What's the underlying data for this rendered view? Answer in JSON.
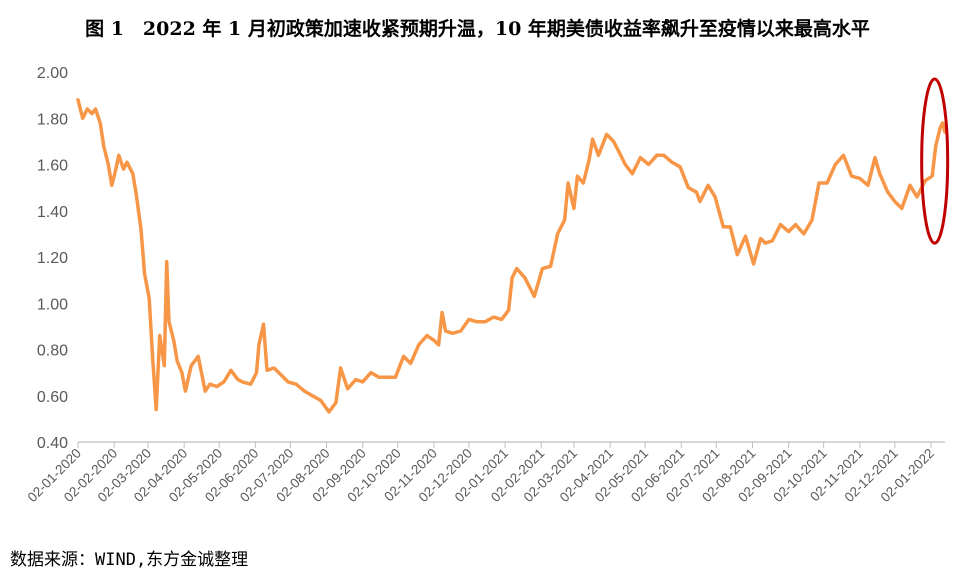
{
  "title": "图 1　2022 年 1 月初政策加速收紧预期升温，10 年期美债收益率飙升至疫情以来最高水平",
  "source": "数据来源：WIND,东方金诚整理",
  "colors": {
    "line": "#F79646",
    "highlight": "#C00000",
    "axis": "#BFBFBF",
    "text": "#595959"
  },
  "chart_data": {
    "type": "line",
    "title": "图 1　2022 年 1 月初政策加速收紧预期升温，10 年期美债收益率飙升至疫情以来最高水平",
    "xlabel": "",
    "ylabel": "",
    "ylim": [
      0.4,
      2.0
    ],
    "yticks": [
      "0.40",
      "0.60",
      "0.80",
      "1.00",
      "1.20",
      "1.40",
      "1.60",
      "1.80",
      "2.00"
    ],
    "xticks": [
      "02-01-2020",
      "02-02-2020",
      "02-03-2020",
      "02-04-2020",
      "02-05-2020",
      "02-06-2020",
      "02-07-2020",
      "02-08-2020",
      "02-09-2020",
      "02-10-2020",
      "02-11-2020",
      "02-12-2020",
      "02-01-2021",
      "02-02-2021",
      "02-03-2021",
      "02-04-2021",
      "02-05-2021",
      "02-06-2021",
      "02-07-2021",
      "02-08-2021",
      "02-09-2021",
      "02-10-2021",
      "02-11-2021",
      "02-12-2021",
      "02-01-2022"
    ],
    "grid": false,
    "legend": "none",
    "series": [
      {
        "x": [
          "2020-01-02",
          "2020-01-06",
          "2020-01-10",
          "2020-01-14",
          "2020-01-17",
          "2020-01-21",
          "2020-01-24",
          "2020-01-28",
          "2020-01-31",
          "2020-02-03",
          "2020-02-06",
          "2020-02-10",
          "2020-02-13",
          "2020-02-18",
          "2020-02-21",
          "2020-02-25",
          "2020-02-28",
          "2020-03-03",
          "2020-03-06",
          "2020-03-09",
          "2020-03-12",
          "2020-03-16",
          "2020-03-18",
          "2020-03-20",
          "2020-03-24",
          "2020-03-27",
          "2020-03-31",
          "2020-04-03",
          "2020-04-08",
          "2020-04-14",
          "2020-04-20",
          "2020-04-24",
          "2020-04-30",
          "2020-05-06",
          "2020-05-12",
          "2020-05-18",
          "2020-05-22",
          "2020-05-29",
          "2020-06-03",
          "2020-06-05",
          "2020-06-09",
          "2020-06-12",
          "2020-06-18",
          "2020-06-24",
          "2020-06-30",
          "2020-07-07",
          "2020-07-14",
          "2020-07-21",
          "2020-07-28",
          "2020-08-04",
          "2020-08-10",
          "2020-08-14",
          "2020-08-20",
          "2020-08-27",
          "2020-09-02",
          "2020-09-09",
          "2020-09-16",
          "2020-09-23",
          "2020-09-30",
          "2020-10-07",
          "2020-10-13",
          "2020-10-20",
          "2020-10-27",
          "2020-11-02",
          "2020-11-06",
          "2020-11-09",
          "2020-11-12",
          "2020-11-18",
          "2020-11-25",
          "2020-12-02",
          "2020-12-09",
          "2020-12-16",
          "2020-12-23",
          "2020-12-30",
          "2021-01-05",
          "2021-01-08",
          "2021-01-12",
          "2021-01-19",
          "2021-01-27",
          "2021-02-03",
          "2021-02-10",
          "2021-02-16",
          "2021-02-22",
          "2021-02-25",
          "2021-03-02",
          "2021-03-05",
          "2021-03-10",
          "2021-03-15",
          "2021-03-18",
          "2021-03-23",
          "2021-03-30",
          "2021-04-05",
          "2021-04-09",
          "2021-04-15",
          "2021-04-21",
          "2021-04-28",
          "2021-05-05",
          "2021-05-12",
          "2021-05-18",
          "2021-05-25",
          "2021-06-01",
          "2021-06-08",
          "2021-06-15",
          "2021-06-18",
          "2021-06-25",
          "2021-07-01",
          "2021-07-08",
          "2021-07-14",
          "2021-07-20",
          "2021-07-27",
          "2021-08-03",
          "2021-08-09",
          "2021-08-13",
          "2021-08-19",
          "2021-08-26",
          "2021-09-02",
          "2021-09-08",
          "2021-09-15",
          "2021-09-22",
          "2021-09-28",
          "2021-10-05",
          "2021-10-12",
          "2021-10-19",
          "2021-10-26",
          "2021-11-02",
          "2021-11-09",
          "2021-11-15",
          "2021-11-19",
          "2021-11-26",
          "2021-12-02",
          "2021-12-08",
          "2021-12-15",
          "2021-12-21",
          "2021-12-28",
          "2022-01-03",
          "2022-01-06",
          "2022-01-10",
          "2022-01-12",
          "2022-01-14"
        ],
        "y": [
          1.88,
          1.8,
          1.84,
          1.82,
          1.84,
          1.78,
          1.68,
          1.6,
          1.51,
          1.57,
          1.64,
          1.58,
          1.61,
          1.56,
          1.47,
          1.32,
          1.13,
          1.02,
          0.76,
          0.54,
          0.86,
          0.73,
          1.18,
          0.92,
          0.84,
          0.75,
          0.7,
          0.62,
          0.73,
          0.77,
          0.62,
          0.65,
          0.64,
          0.66,
          0.71,
          0.67,
          0.66,
          0.65,
          0.7,
          0.82,
          0.91,
          0.71,
          0.72,
          0.69,
          0.66,
          0.65,
          0.62,
          0.6,
          0.58,
          0.53,
          0.57,
          0.72,
          0.63,
          0.67,
          0.66,
          0.7,
          0.68,
          0.68,
          0.68,
          0.77,
          0.74,
          0.82,
          0.86,
          0.84,
          0.82,
          0.96,
          0.88,
          0.87,
          0.88,
          0.93,
          0.92,
          0.92,
          0.94,
          0.93,
          0.97,
          1.11,
          1.15,
          1.11,
          1.03,
          1.15,
          1.16,
          1.3,
          1.36,
          1.52,
          1.41,
          1.55,
          1.52,
          1.62,
          1.71,
          1.64,
          1.73,
          1.7,
          1.66,
          1.6,
          1.56,
          1.63,
          1.6,
          1.64,
          1.64,
          1.61,
          1.59,
          1.5,
          1.48,
          1.44,
          1.51,
          1.46,
          1.33,
          1.33,
          1.21,
          1.29,
          1.17,
          1.28,
          1.26,
          1.27,
          1.34,
          1.31,
          1.34,
          1.3,
          1.36,
          1.52,
          1.52,
          1.6,
          1.64,
          1.55,
          1.54,
          1.51,
          1.63,
          1.56,
          1.48,
          1.44,
          1.41,
          1.51,
          1.46,
          1.53,
          1.55,
          1.68,
          1.76,
          1.78,
          1.74
        ]
      }
    ],
    "annotation": "highlight ellipse around early January 2022 peak"
  }
}
